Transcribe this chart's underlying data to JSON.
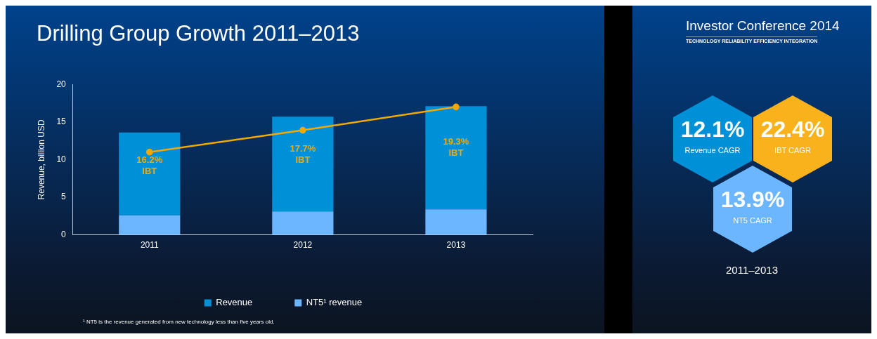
{
  "chart_data": [
    {
      "type": "bar",
      "title": "Drilling Group Growth 2011–2013",
      "ylabel": "Revenue, billion USD",
      "categories": [
        "2011",
        "2012",
        "2013"
      ],
      "stacked": true,
      "series": [
        {
          "name": "NT5¹ revenue",
          "color": "#6bb6ff",
          "values": [
            2.6,
            3.1,
            3.4
          ]
        },
        {
          "name": "Revenue",
          "color": "#0090d8",
          "values": [
            11.0,
            12.6,
            13.7
          ]
        },
        {
          "type": "line",
          "color": "#f5a800",
          "values": [
            11.0,
            13.9,
            17.0
          ]
        }
      ],
      "ylim": [
        0,
        20
      ],
      "yticks": [
        0,
        5,
        10,
        15,
        20
      ],
      "grid": false,
      "legend": "bottom",
      "marker": "circle",
      "annotations": [
        "16.2% IBT",
        "17.7% IBT",
        "19.3% IBT",
        "¹ NT5 is the revenue generated from new technology less than five years old."
      ]
    },
    {
      "type": "other",
      "title": "Investor Conference 2014",
      "subtitle": "TECHNOLOGY RELIABILITY EFFICIENCY INTEGRATION",
      "annotations": [
        "12.1%",
        "Revenue CAGR",
        "22.4%",
        "IBT CAGR",
        "13.9%",
        "NT5 CAGR",
        "2011–2013"
      ]
    }
  ]
}
